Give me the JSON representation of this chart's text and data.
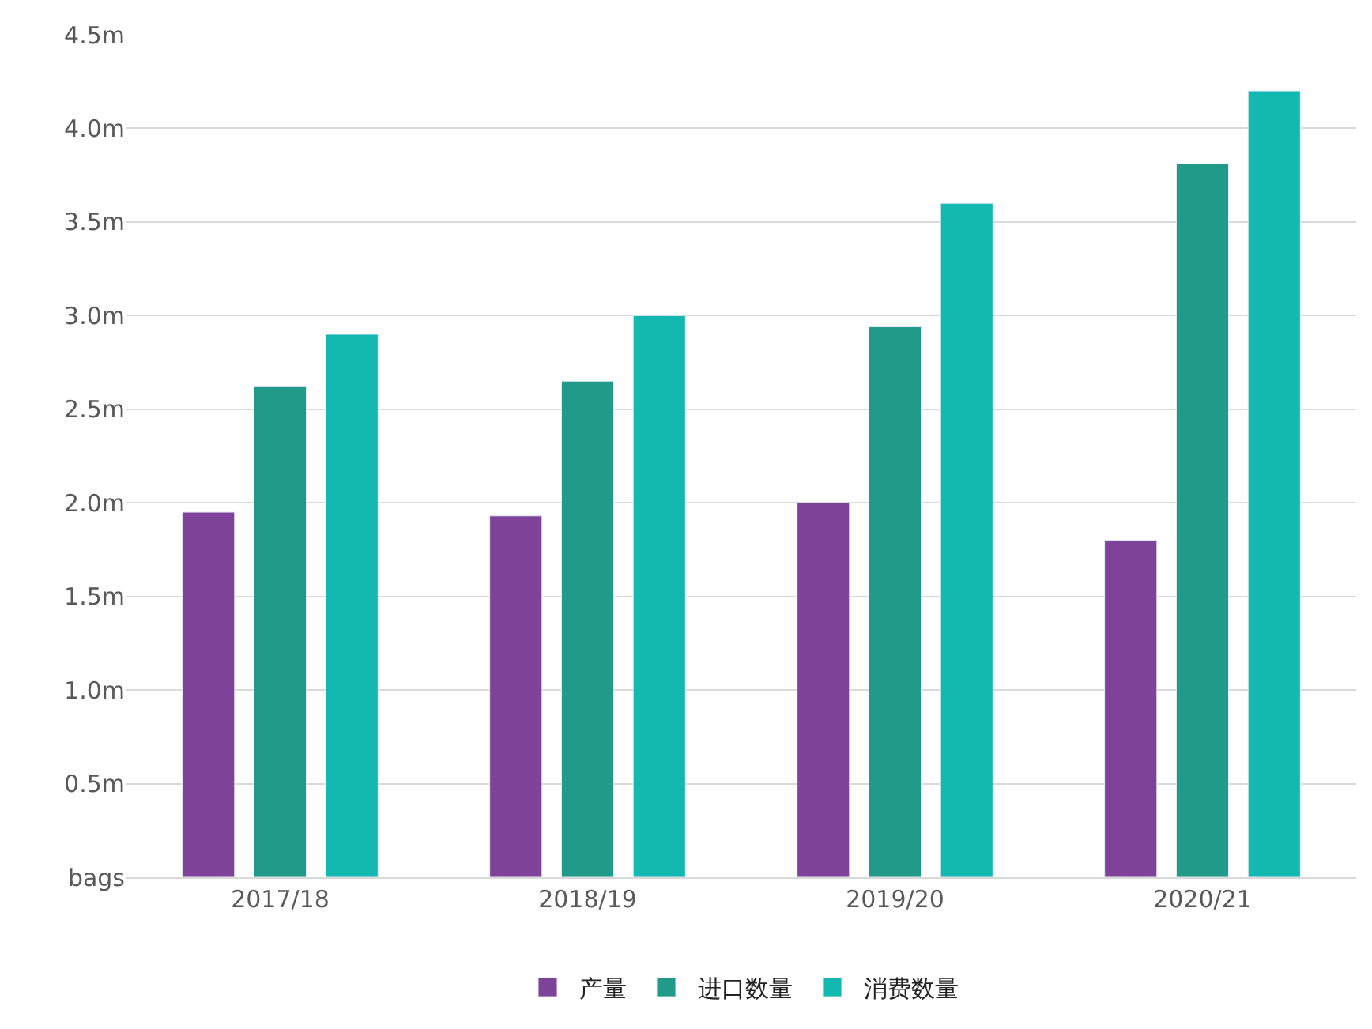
{
  "chart_data": {
    "type": "bar",
    "categories": [
      "2017/18",
      "2018/19",
      "2019/20",
      "2020/21"
    ],
    "series": [
      {
        "name": "产量",
        "color": "#7e4298",
        "values": [
          1.95,
          1.93,
          2.0,
          1.8
        ]
      },
      {
        "name": "进口数量",
        "color": "#229a8a",
        "values": [
          2.62,
          2.65,
          2.94,
          3.81
        ]
      },
      {
        "name": "消费数量",
        "color": "#13b8b0",
        "values": [
          2.9,
          3.0,
          3.6,
          4.2
        ]
      }
    ],
    "ylim": [
      0,
      4.5
    ],
    "yticks": [
      {
        "value": 0,
        "label": "bags"
      },
      {
        "value": 0.5,
        "label": "0.5m"
      },
      {
        "value": 1.0,
        "label": "1.0m"
      },
      {
        "value": 1.5,
        "label": "1.5m"
      },
      {
        "value": 2.0,
        "label": "2.0m"
      },
      {
        "value": 2.5,
        "label": "2.5m"
      },
      {
        "value": 3.0,
        "label": "3.0m"
      },
      {
        "value": 3.5,
        "label": "3.5m"
      },
      {
        "value": 4.0,
        "label": "4.0m"
      },
      {
        "value": 4.5,
        "label": "4.5m"
      }
    ],
    "grid": "y",
    "legend": "bottom"
  }
}
